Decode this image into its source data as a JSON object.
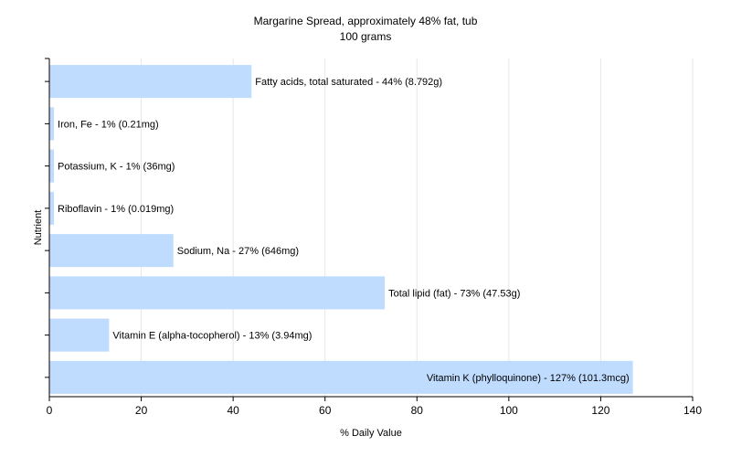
{
  "chart_data": {
    "type": "bar",
    "orientation": "horizontal",
    "title": "Margarine Spread, approximately 48% fat, tub",
    "subtitle": "100 grams",
    "xlabel": "% Daily Value",
    "ylabel": "Nutrient",
    "xlim": [
      0,
      140
    ],
    "xticks": [
      0,
      20,
      40,
      60,
      80,
      100,
      120,
      140
    ],
    "grid": "vertical",
    "colors": {
      "bar": "#bfdcff",
      "grid": "#e6e6e6",
      "axis": "#000000"
    },
    "categories": [
      "Fatty acids, total saturated",
      "Iron, Fe",
      "Potassium, K",
      "Riboflavin",
      "Sodium, Na",
      "Total lipid (fat)",
      "Vitamin E (alpha-tocopherol)",
      "Vitamin K (phylloquinone)"
    ],
    "values": [
      44,
      1,
      1,
      1,
      27,
      73,
      13,
      127
    ],
    "labels": [
      "Fatty acids, total saturated - 44% (8.792g)",
      "Iron, Fe - 1% (0.21mg)",
      "Potassium, K - 1% (36mg)",
      "Riboflavin - 1% (0.019mg)",
      "Sodium, Na - 27% (646mg)",
      "Total lipid (fat) - 73% (47.53g)",
      "Vitamin E (alpha-tocopherol) - 13% (3.94mg)",
      "Vitamin K (phylloquinone) - 127% (101.3mcg)"
    ]
  }
}
